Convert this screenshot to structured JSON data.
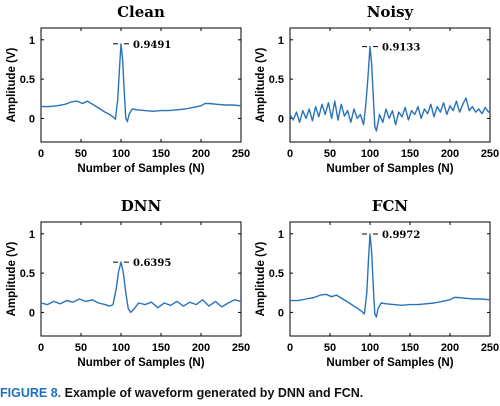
{
  "colors": {
    "line": "#2a73bb",
    "axes": "#000000",
    "caption_label": "#1f6fbf"
  },
  "caption": {
    "label": "FIGURE 8.",
    "text": "Example of waveform generated by DNN and FCN."
  },
  "chart_data": [
    {
      "type": "line",
      "title": "Clean",
      "xlabel": "Number of Samples (N)",
      "ylabel": "Amplitude (V)",
      "xlim": [
        0,
        250
      ],
      "ylim": [
        -0.3,
        1.15
      ],
      "xticks": [
        "0",
        "50",
        "100",
        "150",
        "200",
        "250"
      ],
      "yticks": [
        "0",
        "0.5",
        "1"
      ],
      "peak_label": "0.9491",
      "series": [
        {
          "x": [
            0,
            10,
            20,
            30,
            38,
            45,
            52,
            58,
            66,
            74,
            80,
            86,
            90,
            93,
            96,
            98,
            100,
            102,
            104,
            106,
            108,
            110,
            114,
            120,
            130,
            140,
            150,
            160,
            170,
            180,
            190,
            200,
            205,
            210,
            220,
            230,
            240,
            250
          ],
          "y": [
            0.15,
            0.15,
            0.16,
            0.18,
            0.21,
            0.22,
            0.19,
            0.22,
            0.17,
            0.12,
            0.08,
            0.05,
            0.02,
            -0.01,
            0.25,
            0.62,
            0.9491,
            0.75,
            0.35,
            0.0,
            -0.04,
            0.05,
            0.12,
            0.11,
            0.1,
            0.09,
            0.1,
            0.1,
            0.11,
            0.12,
            0.14,
            0.16,
            0.19,
            0.19,
            0.18,
            0.17,
            0.17,
            0.16
          ]
        }
      ]
    },
    {
      "type": "line",
      "title": "Noisy",
      "xlabel": "Number of Samples (N)",
      "ylabel": "Amplitude (V)",
      "xlim": [
        0,
        250
      ],
      "ylim": [
        -0.3,
        1.15
      ],
      "xticks": [
        "0",
        "50",
        "100",
        "150",
        "200",
        "250"
      ],
      "yticks": [
        "0",
        "0.5",
        "1"
      ],
      "peak_label": "0.9133",
      "series": [
        {
          "x": [
            0,
            4,
            8,
            12,
            16,
            20,
            24,
            28,
            32,
            36,
            40,
            44,
            48,
            52,
            56,
            60,
            64,
            68,
            72,
            76,
            80,
            84,
            88,
            92,
            95,
            98,
            100,
            102,
            104,
            106,
            108,
            112,
            116,
            120,
            124,
            128,
            132,
            136,
            140,
            144,
            148,
            152,
            156,
            160,
            164,
            168,
            172,
            176,
            180,
            184,
            188,
            192,
            196,
            200,
            204,
            208,
            212,
            216,
            220,
            224,
            228,
            232,
            236,
            240,
            244,
            248,
            250
          ],
          "y": [
            0.05,
            -0.02,
            0.08,
            -0.05,
            0.1,
            0.0,
            0.12,
            -0.03,
            0.15,
            0.02,
            0.18,
            0.05,
            0.2,
            0.0,
            0.22,
            -0.02,
            0.18,
            0.03,
            0.1,
            -0.05,
            0.12,
            0.0,
            0.05,
            -0.08,
            0.2,
            0.6,
            0.9133,
            0.7,
            0.3,
            -0.1,
            -0.16,
            0.05,
            -0.05,
            0.12,
            0.0,
            0.1,
            -0.08,
            0.08,
            0.02,
            0.14,
            -0.02,
            0.1,
            0.05,
            0.15,
            0.0,
            0.12,
            0.06,
            0.18,
            0.02,
            0.15,
            0.08,
            0.2,
            0.05,
            0.16,
            0.1,
            0.22,
            0.08,
            0.18,
            0.26,
            0.1,
            0.15,
            0.08,
            0.12,
            0.06,
            0.14,
            0.08,
            0.1
          ]
        }
      ]
    },
    {
      "type": "line",
      "title": "DNN",
      "xlabel": "Number of Samples (N)",
      "ylabel": "Amplitude (V)",
      "xlim": [
        0,
        250
      ],
      "ylim": [
        -0.3,
        1.15
      ],
      "xticks": [
        "0",
        "50",
        "100",
        "150",
        "200",
        "250"
      ],
      "yticks": [
        "0",
        "0.5",
        "1"
      ],
      "peak_label": "0.6395",
      "series": [
        {
          "x": [
            0,
            8,
            16,
            24,
            32,
            40,
            48,
            56,
            64,
            72,
            80,
            86,
            90,
            94,
            97,
            100,
            103,
            106,
            109,
            112,
            116,
            122,
            130,
            138,
            146,
            154,
            162,
            170,
            178,
            186,
            194,
            202,
            210,
            218,
            226,
            234,
            242,
            250
          ],
          "y": [
            0.12,
            0.1,
            0.14,
            0.11,
            0.15,
            0.13,
            0.17,
            0.14,
            0.16,
            0.12,
            0.1,
            0.08,
            0.1,
            0.3,
            0.52,
            0.6395,
            0.5,
            0.25,
            0.05,
            0.0,
            0.04,
            0.12,
            0.1,
            0.13,
            0.06,
            0.12,
            0.09,
            0.14,
            0.08,
            0.13,
            0.1,
            0.16,
            0.08,
            0.14,
            0.07,
            0.12,
            0.16,
            0.14
          ]
        }
      ]
    },
    {
      "type": "line",
      "title": "FCN",
      "xlabel": "Number of Samples (N)",
      "ylabel": "Amplitude (V)",
      "xlim": [
        0,
        250
      ],
      "ylim": [
        -0.3,
        1.15
      ],
      "xticks": [
        "0",
        "50",
        "100",
        "150",
        "200",
        "250"
      ],
      "yticks": [
        "0",
        "0.5",
        "1"
      ],
      "peak_label": "0.9972",
      "series": [
        {
          "x": [
            0,
            10,
            20,
            30,
            38,
            45,
            52,
            58,
            66,
            74,
            80,
            86,
            90,
            93,
            96,
            98,
            100,
            102,
            104,
            106,
            108,
            110,
            114,
            120,
            130,
            140,
            150,
            160,
            170,
            180,
            190,
            200,
            205,
            210,
            220,
            230,
            240,
            250
          ],
          "y": [
            0.15,
            0.15,
            0.17,
            0.19,
            0.22,
            0.23,
            0.2,
            0.22,
            0.17,
            0.12,
            0.08,
            0.04,
            0.01,
            -0.02,
            0.25,
            0.65,
            0.9972,
            0.78,
            0.35,
            -0.02,
            -0.06,
            0.05,
            0.12,
            0.11,
            0.1,
            0.09,
            0.1,
            0.1,
            0.11,
            0.12,
            0.14,
            0.16,
            0.19,
            0.19,
            0.18,
            0.17,
            0.17,
            0.16
          ]
        }
      ]
    }
  ]
}
